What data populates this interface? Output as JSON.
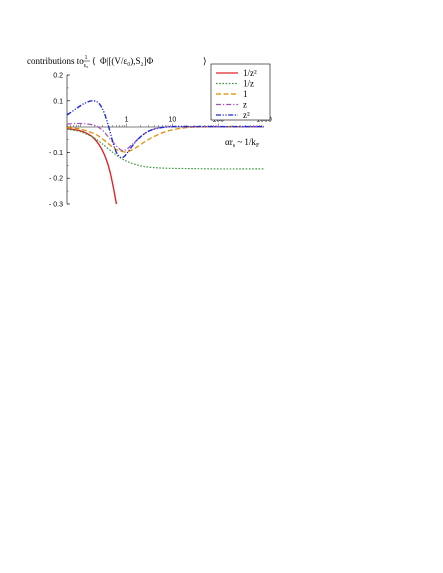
{
  "chart_data": {
    "type": "line",
    "title": {
      "prefix": "contributions to",
      "frac_num": "1",
      "frac_den": "ε₀",
      "bracket_open": "⟨",
      "expr": "Φ|[(V/ε₀),S₂]Φ",
      "bracket_close": "⟩"
    },
    "xlabel": "αr_s ~ 1/k_F",
    "x_scale": "log",
    "xlim": [
      0.05,
      1000
    ],
    "ylim": [
      -0.3,
      0.2
    ],
    "x_ticks": [
      {
        "value": 1,
        "label": "1"
      },
      {
        "value": 10,
        "label": "10"
      },
      {
        "value": 100,
        "label": "100"
      },
      {
        "value": 1000,
        "label": "1000"
      }
    ],
    "y_ticks": [
      {
        "value": 0.2,
        "label": "0.2"
      },
      {
        "value": 0.1,
        "label": "0.1"
      },
      {
        "value": -0.1,
        "label": "- 0.1"
      },
      {
        "value": -0.2,
        "label": "- 0.2"
      },
      {
        "value": -0.3,
        "label": "- 0.3"
      }
    ],
    "grid": false,
    "legend_position": "top-right",
    "series": [
      {
        "name": "1/z²",
        "color": "#e0242b",
        "dash": "solid",
        "x": [
          0.05,
          0.08,
          0.12,
          0.18,
          0.25,
          0.33,
          0.42,
          0.5,
          0.6
        ],
        "y": [
          -0.008,
          -0.013,
          -0.022,
          -0.04,
          -0.07,
          -0.11,
          -0.165,
          -0.225,
          -0.3
        ]
      },
      {
        "name": "1/z",
        "color": "#3a9a3a",
        "dash": "dotted",
        "x": [
          0.05,
          0.1,
          0.2,
          0.3,
          0.5,
          0.8,
          1.2,
          2,
          3,
          5,
          10,
          30,
          100,
          300,
          1000
        ],
        "y": [
          -0.01,
          -0.02,
          -0.045,
          -0.068,
          -0.1,
          -0.125,
          -0.14,
          -0.152,
          -0.157,
          -0.16,
          -0.162,
          -0.163,
          -0.164,
          -0.164,
          -0.164
        ]
      },
      {
        "name": "1",
        "color": "#e08a00",
        "dash": "dashed",
        "x": [
          0.05,
          0.1,
          0.2,
          0.3,
          0.5,
          0.7,
          1,
          1.5,
          2,
          3,
          5,
          8,
          15,
          30,
          100,
          1000
        ],
        "y": [
          -0.003,
          -0.01,
          -0.028,
          -0.048,
          -0.08,
          -0.094,
          -0.098,
          -0.085,
          -0.07,
          -0.05,
          -0.03,
          -0.017,
          -0.007,
          -0.002,
          0,
          0
        ]
      },
      {
        "name": "z",
        "color": "#a24fb8",
        "dash": "dashdot",
        "x": [
          0.05,
          0.1,
          0.2,
          0.3,
          0.4,
          0.6,
          0.8,
          1,
          1.3,
          2,
          3,
          5,
          10,
          30,
          100,
          1000
        ],
        "y": [
          0.01,
          0.012,
          0.005,
          -0.015,
          -0.04,
          -0.075,
          -0.093,
          -0.088,
          -0.07,
          -0.04,
          -0.018,
          -0.005,
          0,
          0,
          0,
          0
        ]
      },
      {
        "name": "z²",
        "color": "#1f2bd6",
        "dash": "dashdotdot",
        "x": [
          0.05,
          0.08,
          0.12,
          0.18,
          0.25,
          0.33,
          0.42,
          0.5,
          0.6,
          0.75,
          0.9,
          1.1,
          1.4,
          2,
          3,
          5,
          10,
          30,
          100,
          1000
        ],
        "y": [
          0.045,
          0.07,
          0.09,
          0.1,
          0.09,
          0.05,
          -0.01,
          -0.06,
          -0.1,
          -0.12,
          -0.115,
          -0.095,
          -0.07,
          -0.04,
          -0.018,
          -0.006,
          0,
          0,
          0,
          0
        ]
      }
    ]
  }
}
